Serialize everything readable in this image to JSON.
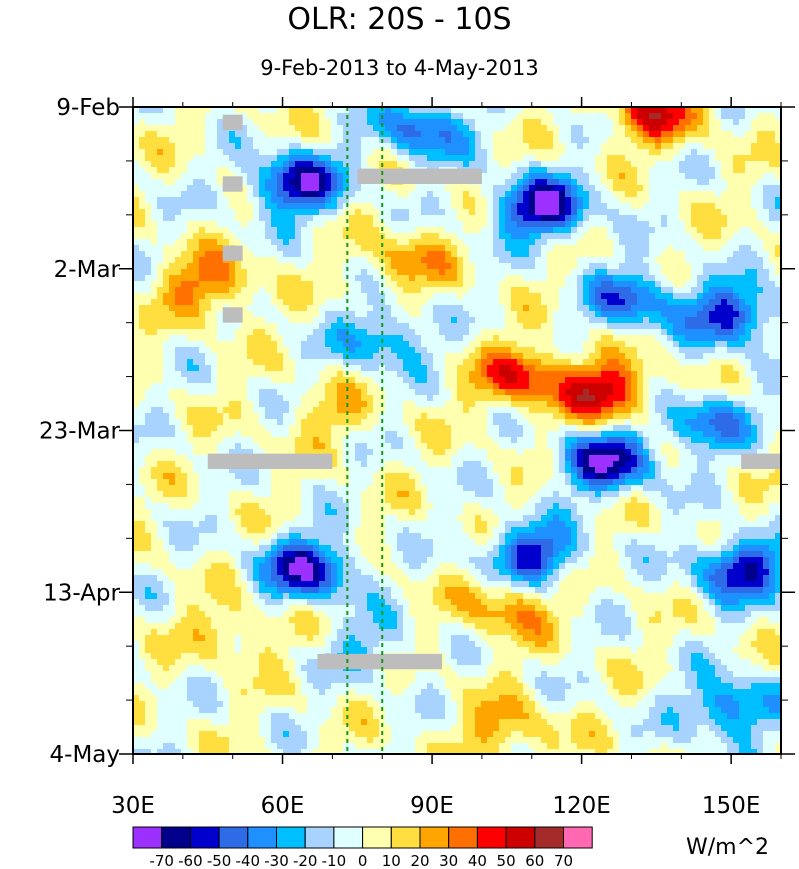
{
  "chart_data": {
    "type": "heatmap",
    "title": "OLR: 20S - 10S",
    "subtitle": "9-Feb-2013 to 4-May-2013",
    "x_axis": {
      "range": [
        30,
        160
      ],
      "ticks": [
        30,
        60,
        90,
        120,
        150
      ],
      "tick_labels": [
        "30E",
        "60E",
        "90E",
        "120E",
        "150E"
      ],
      "minor_step": 10
    },
    "y_axis": {
      "range_days": [
        "9-Feb-2013",
        "4-May-2013"
      ],
      "tick_labels": [
        "9-Feb",
        "2-Mar",
        "23-Mar",
        "13-Apr",
        "4-May"
      ],
      "tick_dates": [
        "2013-02-09",
        "2013-03-02",
        "2013-03-23",
        "2013-04-13",
        "2013-05-04"
      ],
      "orientation": "time increases downward"
    },
    "reference_lines": [
      {
        "lon": 73,
        "style": "dashed",
        "color": "#119911"
      },
      {
        "lon": 80,
        "style": "dashed",
        "color": "#119911"
      }
    ],
    "colorbar": {
      "units": "W/m^2",
      "labels": [
        "-70",
        "-60",
        "-50",
        "-40",
        "-30",
        "-20",
        "-10",
        "0",
        "10",
        "20",
        "30",
        "40",
        "50",
        "60",
        "70"
      ],
      "colors": [
        "#9b30ff",
        "#00008b",
        "#0000cd",
        "#2e6be6",
        "#1e90ff",
        "#00bfff",
        "#a9d3ff",
        "#e0ffff",
        "#ffffb0",
        "#ffdf40",
        "#ffa500",
        "#ff7000",
        "#ff0000",
        "#cd0000",
        "#a52a2a",
        "#ff69b4"
      ]
    },
    "features": [
      {
        "lon": 63,
        "date": "2013-02-19",
        "value": -65
      },
      {
        "lon": 88,
        "date": "2013-02-12",
        "value": -45
      },
      {
        "lon": 112,
        "date": "2013-02-22",
        "value": -70
      },
      {
        "lon": 130,
        "date": "2013-03-06",
        "value": -45
      },
      {
        "lon": 150,
        "date": "2013-03-08",
        "value": -55
      },
      {
        "lon": 80,
        "date": "2013-03-11",
        "value": -35
      },
      {
        "lon": 125,
        "date": "2013-03-18",
        "value": 55
      },
      {
        "lon": 108,
        "date": "2013-03-16",
        "value": 45
      },
      {
        "lon": 125,
        "date": "2013-03-27",
        "value": -65
      },
      {
        "lon": 145,
        "date": "2013-03-22",
        "value": -40
      },
      {
        "lon": 65,
        "date": "2013-04-10",
        "value": -65
      },
      {
        "lon": 110,
        "date": "2013-04-08",
        "value": -55
      },
      {
        "lon": 152,
        "date": "2013-04-10",
        "value": -60
      },
      {
        "lon": 105,
        "date": "2013-04-15",
        "value": 30
      },
      {
        "lon": 78,
        "date": "2013-04-20",
        "value": -20
      },
      {
        "lon": 150,
        "date": "2013-04-28",
        "value": -45
      },
      {
        "lon": 45,
        "date": "2013-03-04",
        "value": 35
      },
      {
        "lon": 85,
        "date": "2013-03-01",
        "value": 25
      },
      {
        "lon": 135,
        "date": "2013-02-10",
        "value": 45
      },
      {
        "lon": 50,
        "date": "2013-04-18",
        "value": 20
      },
      {
        "lon": 105,
        "date": "2013-05-01",
        "value": 25
      },
      {
        "lon": 70,
        "date": "2013-03-21",
        "value": 15
      }
    ],
    "missing_data": [
      {
        "lon": [
          48,
          52
        ],
        "date": [
          "2013-02-10",
          "2013-02-12"
        ]
      },
      {
        "lon": [
          48,
          52
        ],
        "date": [
          "2013-02-18",
          "2013-02-20"
        ]
      },
      {
        "lon": [
          48,
          52
        ],
        "date": [
          "2013-02-27",
          "2013-03-01"
        ]
      },
      {
        "lon": [
          48,
          52
        ],
        "date": [
          "2013-03-07",
          "2013-03-09"
        ]
      },
      {
        "lon": [
          75,
          100
        ],
        "date": [
          "2013-02-17",
          "2013-02-19"
        ]
      },
      {
        "lon": [
          45,
          70
        ],
        "date": [
          "2013-03-26",
          "2013-03-28"
        ]
      },
      {
        "lon": [
          152,
          160
        ],
        "date": [
          "2013-03-26",
          "2013-03-28"
        ]
      },
      {
        "lon": [
          67,
          92
        ],
        "date": [
          "2013-04-21",
          "2013-04-23"
        ]
      }
    ]
  }
}
